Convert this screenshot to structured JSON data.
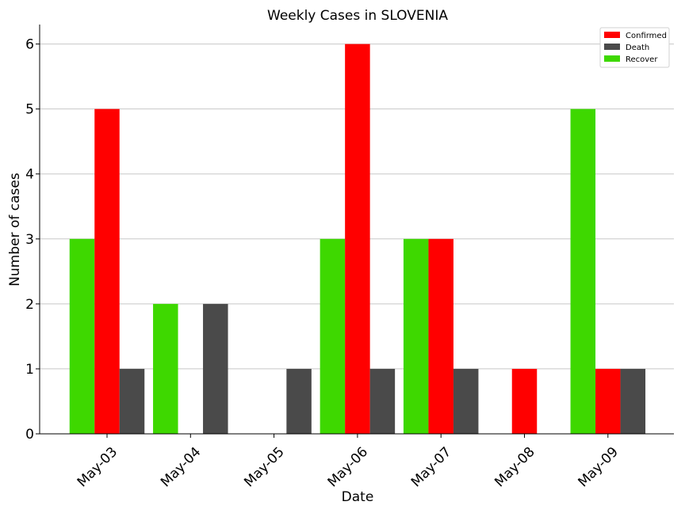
{
  "chart_data": {
    "type": "bar",
    "title": "Weekly Cases in SLOVENIA",
    "xlabel": "Date",
    "ylabel": "Number of cases",
    "categories": [
      "May-03",
      "May-04",
      "May-05",
      "May-06",
      "May-07",
      "May-08",
      "May-09"
    ],
    "series": [
      {
        "name": "Recover",
        "color": "#3ed800",
        "values": [
          3,
          2,
          0,
          3,
          3,
          0,
          5
        ]
      },
      {
        "name": "Confirmed",
        "color": "#ff0000",
        "values": [
          5,
          0,
          0,
          6,
          3,
          1,
          1
        ]
      },
      {
        "name": "Death",
        "color": "#4a4a4a",
        "values": [
          1,
          2,
          1,
          1,
          1,
          0,
          1
        ]
      }
    ],
    "legend_order": [
      "Confirmed",
      "Death",
      "Recover"
    ],
    "legend_position": "top-right",
    "ylim": [
      0,
      6.3
    ],
    "yticks": [
      0,
      1,
      2,
      3,
      4,
      5,
      6
    ],
    "grid": "horizontal",
    "xtick_rotation": 45
  }
}
